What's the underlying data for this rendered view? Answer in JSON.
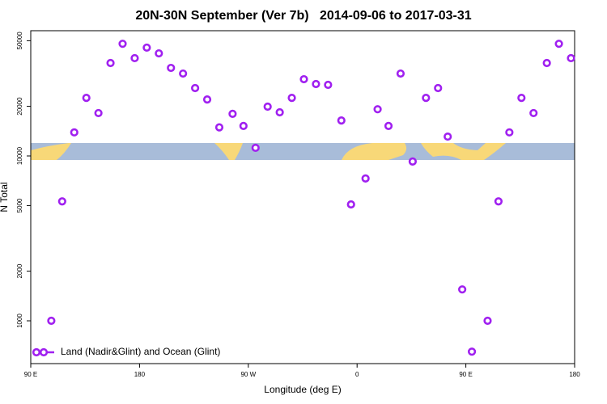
{
  "chart_data": {
    "type": "scatter",
    "title": "20N-30N September (Ver 7b)   2014-09-06 to 2017-03-31",
    "x_label": "Longitude (deg E)",
    "y_label": "N Total",
    "log_y": true,
    "xlim": [
      90,
      540
    ],
    "ylim": [
      550,
      57500
    ],
    "xticks": [
      {
        "value": 90,
        "label": "90 E"
      },
      180,
      {
        "value": 270,
        "label": "90 W"
      },
      {
        "value": 360,
        "label": "0"
      },
      {
        "value": 450,
        "label": "90 E"
      },
      {
        "value": 540,
        "label": "180"
      }
    ],
    "yticks": [
      1000,
      2000,
      5000,
      10000,
      20000,
      50000
    ],
    "legend_position": "bottom-left",
    "series": [
      {
        "name": "Land (Nadir&Glint) and Ocean (Glint)",
        "color": "#a020f0",
        "x": [
          107,
          116,
          126,
          136,
          146,
          156,
          166,
          176,
          186,
          196,
          206,
          216,
          226,
          236,
          246,
          257,
          266,
          276,
          286,
          296,
          306,
          316,
          326,
          336,
          347,
          355,
          367,
          377,
          386,
          396,
          406,
          417,
          427,
          435,
          447,
          455,
          468,
          477,
          486,
          496,
          506,
          517,
          527,
          537
        ],
        "values": [
          1000,
          5300,
          13900,
          22500,
          18200,
          36600,
          47900,
          39200,
          45400,
          41900,
          34200,
          31600,
          25800,
          22000,
          14900,
          18000,
          15200,
          11200,
          19900,
          18400,
          22500,
          29200,
          27300,
          27000,
          16400,
          5080,
          7300,
          19200,
          15200,
          31600,
          9250,
          22500,
          25800,
          13100,
          1550,
          650,
          1000,
          5300,
          13900,
          22500,
          18200,
          36600,
          47900,
          39200
        ]
      }
    ]
  }
}
